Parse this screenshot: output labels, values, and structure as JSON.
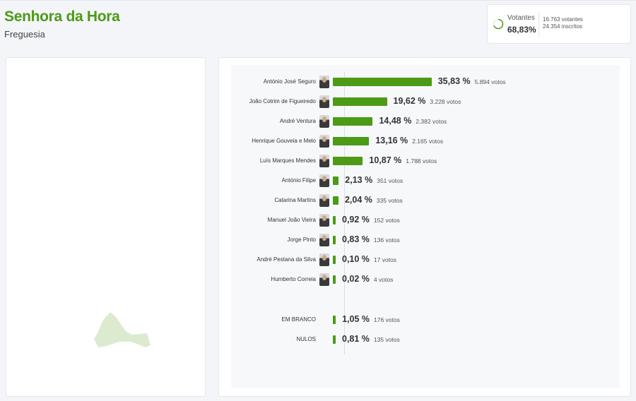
{
  "header": {
    "title": "Senhora da Hora",
    "subtitle": "Freguesia"
  },
  "stats": {
    "label": "Votantes",
    "percent": "68,83%",
    "turnout_fraction": 0.6883,
    "votantes": "16.763 votantes",
    "inscritos": "24.354 inscritos"
  },
  "colors": {
    "accent": "#4c9a16",
    "map_fill": "#dcebd0"
  },
  "results": [
    {
      "name": "António José Seguro",
      "pct": 35.83,
      "pct_label": "35,83 %",
      "votes": "5.894 votos"
    },
    {
      "name": "João Cotrim de Figueiredo",
      "pct": 19.62,
      "pct_label": "19,62 %",
      "votes": "3.228 votos"
    },
    {
      "name": "André Ventura",
      "pct": 14.48,
      "pct_label": "14,48 %",
      "votes": "2.382 votos"
    },
    {
      "name": "Henrique Gouveia e Melo",
      "pct": 13.16,
      "pct_label": "13,16 %",
      "votes": "2.165 votos"
    },
    {
      "name": "Luís Marques Mendes",
      "pct": 10.87,
      "pct_label": "10,87 %",
      "votes": "1.788 votos"
    },
    {
      "name": "António Filipe",
      "pct": 2.13,
      "pct_label": "2,13 %",
      "votes": "351 votos"
    },
    {
      "name": "Catarina Martins",
      "pct": 2.04,
      "pct_label": "2,04 %",
      "votes": "335 votos"
    },
    {
      "name": "Manuel João Vieira",
      "pct": 0.92,
      "pct_label": "0,92 %",
      "votes": "152 votos"
    },
    {
      "name": "Jorge Pinto",
      "pct": 0.83,
      "pct_label": "0,83 %",
      "votes": "136 votos"
    },
    {
      "name": "André Pestana da Silva",
      "pct": 0.1,
      "pct_label": "0,10 %",
      "votes": "17 votos"
    },
    {
      "name": "Humberto Correia",
      "pct": 0.02,
      "pct_label": "0,02 %",
      "votes": "4 votos"
    }
  ],
  "other": [
    {
      "name": "EM BRANCO",
      "pct": 1.05,
      "pct_label": "1,05 %",
      "votes": "176 votos"
    },
    {
      "name": "NULOS",
      "pct": 0.81,
      "pct_label": "0,81 %",
      "votes": "135 votos"
    }
  ]
}
